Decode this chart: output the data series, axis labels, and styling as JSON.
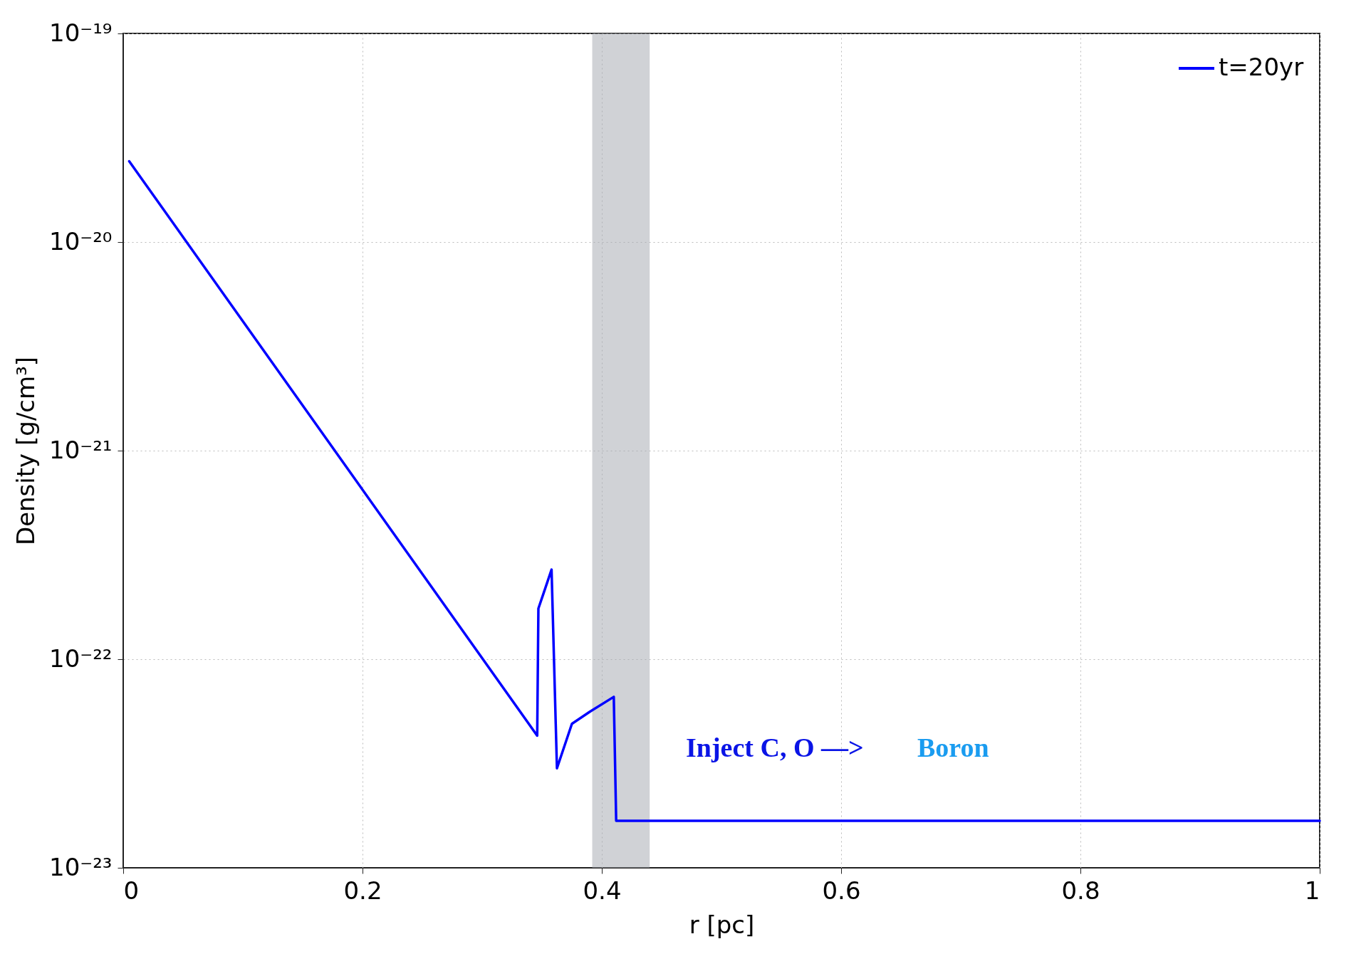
{
  "chart_data": {
    "type": "line",
    "xlabel": "r [pc]",
    "ylabel": "Density [g/cm³]",
    "series": [
      {
        "name": "t=20yr",
        "color": "#0000ff",
        "x": [
          0.005,
          0.346,
          0.347,
          0.358,
          0.3625,
          0.375,
          0.39,
          0.41,
          0.412,
          1.0
        ],
        "values": [
          2.44e-20,
          4.3e-23,
          1.75e-22,
          2.69e-22,
          3e-23,
          4.9e-23,
          5.6e-23,
          6.6e-23,
          1.68e-23,
          1.68e-23
        ]
      }
    ],
    "xlim": [
      0,
      1
    ],
    "xticks": [
      0,
      0.2,
      0.4,
      0.6,
      0.8,
      1
    ],
    "ylim": [
      1e-23,
      1e-19
    ],
    "yticks": [
      {
        "value": 1e-23,
        "label": "10⁻²³"
      },
      {
        "value": 1e-22,
        "label": "10⁻²²"
      },
      {
        "value": 1e-21,
        "label": "10⁻²¹"
      },
      {
        "value": 1e-20,
        "label": "10⁻²⁰"
      },
      {
        "value": 1e-19,
        "label": "10⁻¹⁹"
      }
    ],
    "log": "y",
    "grid": true,
    "legend": "top right",
    "line_style": "solid",
    "marker": "none",
    "bands": [
      {
        "axis": "x",
        "from": 0.392,
        "to": 0.44,
        "color": "#a9adb5"
      }
    ],
    "annotations": [
      "Inject C, O —>",
      "Boron"
    ]
  }
}
